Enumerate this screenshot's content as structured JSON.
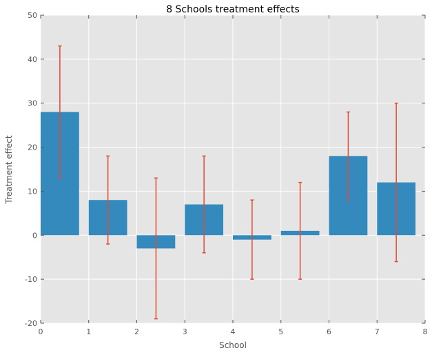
{
  "chart_data": {
    "type": "bar",
    "title": "8 Schools treatment effects",
    "xlabel": "School",
    "ylabel": "Treatment effect",
    "xlim": [
      0,
      8
    ],
    "ylim": [
      -20,
      50
    ],
    "xticks": [
      "0",
      "1",
      "2",
      "3",
      "4",
      "5",
      "6",
      "7",
      "8"
    ],
    "yticks": [
      "-20",
      "-10",
      "0",
      "10",
      "20",
      "30",
      "40",
      "50"
    ],
    "grid": true,
    "categories": [
      0,
      1,
      2,
      3,
      4,
      5,
      6,
      7
    ],
    "values": [
      28,
      8,
      -3,
      7,
      -1,
      1,
      18,
      12
    ],
    "errors": [
      15,
      10,
      16,
      11,
      9,
      11,
      10,
      18
    ],
    "colors": {
      "bar": "#348ABD",
      "error": "#E24A33",
      "background": "#E5E5E5",
      "grid": "#FFFFFF"
    }
  }
}
